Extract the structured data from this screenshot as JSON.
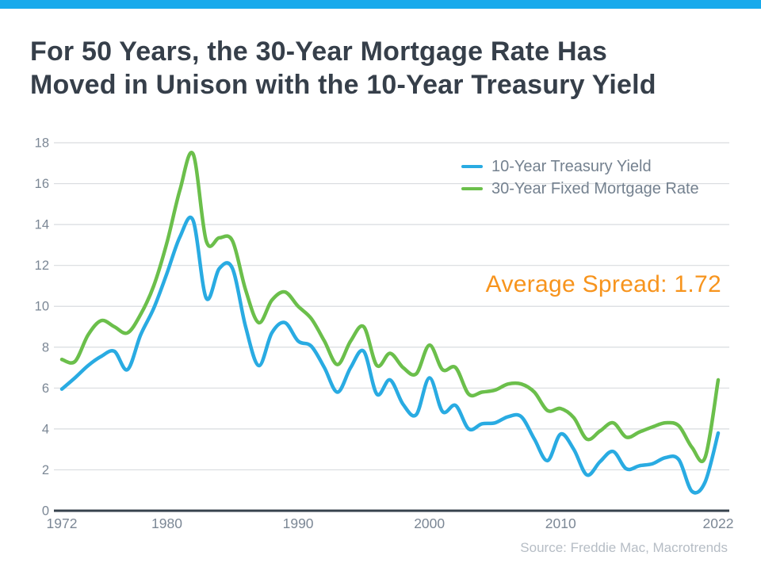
{
  "page": {
    "accent_bar_color": "#18aaec",
    "background_color": "#ffffff"
  },
  "title": {
    "line1": "For 50 Years, the 30-Year Mortgage Rate Has",
    "line2": "Moved in Unison with the 10-Year Treasury Yield"
  },
  "annotation": {
    "label": "Average Spread: 1.72",
    "value": 1.72,
    "color": "#f7941d"
  },
  "source": "Source: Freddie Mac, Macrotrends",
  "colors": {
    "title_text": "#363f4a",
    "tick_label": "#7b8795",
    "legend_text": "#74818f",
    "source_text": "#b6bdc5",
    "grid_line": "#d9dcdf",
    "axis_line": "#37424d"
  },
  "chart_data": {
    "type": "line",
    "title": "",
    "xlabel": "",
    "ylabel": "",
    "xlim": [
      1972,
      2022
    ],
    "ylim": [
      0,
      18
    ],
    "x_ticks": [
      1972,
      1980,
      1990,
      2000,
      2010,
      2022
    ],
    "y_ticks": [
      0,
      2,
      4,
      6,
      8,
      10,
      12,
      14,
      16,
      18
    ],
    "grid": "horizontal",
    "legend_position": "top-right",
    "annotation": "Average Spread: 1.72",
    "x": [
      1972,
      1973,
      1974,
      1975,
      1976,
      1977,
      1978,
      1979,
      1980,
      1981,
      1982,
      1983,
      1984,
      1985,
      1986,
      1987,
      1988,
      1989,
      1990,
      1991,
      1992,
      1993,
      1994,
      1995,
      1996,
      1997,
      1998,
      1999,
      2000,
      2001,
      2002,
      2003,
      2004,
      2005,
      2006,
      2007,
      2008,
      2009,
      2010,
      2011,
      2012,
      2013,
      2014,
      2015,
      2016,
      2017,
      2018,
      2019,
      2020,
      2021,
      2022
    ],
    "series": [
      {
        "name": "10-Year Treasury Yield",
        "color": "#29abe2",
        "values": [
          5.95,
          6.5,
          7.1,
          7.55,
          7.8,
          6.9,
          8.6,
          9.9,
          11.6,
          13.4,
          14.2,
          10.4,
          11.85,
          11.85,
          9.0,
          7.1,
          8.7,
          9.2,
          8.3,
          8.05,
          7.0,
          5.8,
          7.0,
          7.8,
          5.7,
          6.4,
          5.2,
          4.7,
          6.5,
          4.85,
          5.15,
          4.0,
          4.25,
          4.3,
          4.6,
          4.6,
          3.5,
          2.45,
          3.75,
          3.0,
          1.75,
          2.4,
          2.9,
          2.05,
          2.2,
          2.3,
          2.6,
          2.5,
          0.95,
          1.4,
          3.8
        ]
      },
      {
        "name": "30-Year Fixed Mortgage Rate",
        "color": "#6bbf4b",
        "values": [
          7.4,
          7.3,
          8.6,
          9.3,
          9.0,
          8.7,
          9.6,
          11.0,
          13.1,
          15.7,
          17.45,
          13.2,
          13.35,
          13.2,
          10.8,
          9.2,
          10.3,
          10.7,
          10.0,
          9.4,
          8.3,
          7.15,
          8.3,
          9.0,
          7.1,
          7.7,
          7.0,
          6.7,
          8.1,
          6.9,
          7.0,
          5.7,
          5.8,
          5.9,
          6.2,
          6.2,
          5.8,
          4.9,
          5.0,
          4.55,
          3.5,
          3.9,
          4.3,
          3.6,
          3.85,
          4.1,
          4.3,
          4.15,
          3.1,
          2.6,
          6.4
        ]
      }
    ]
  }
}
